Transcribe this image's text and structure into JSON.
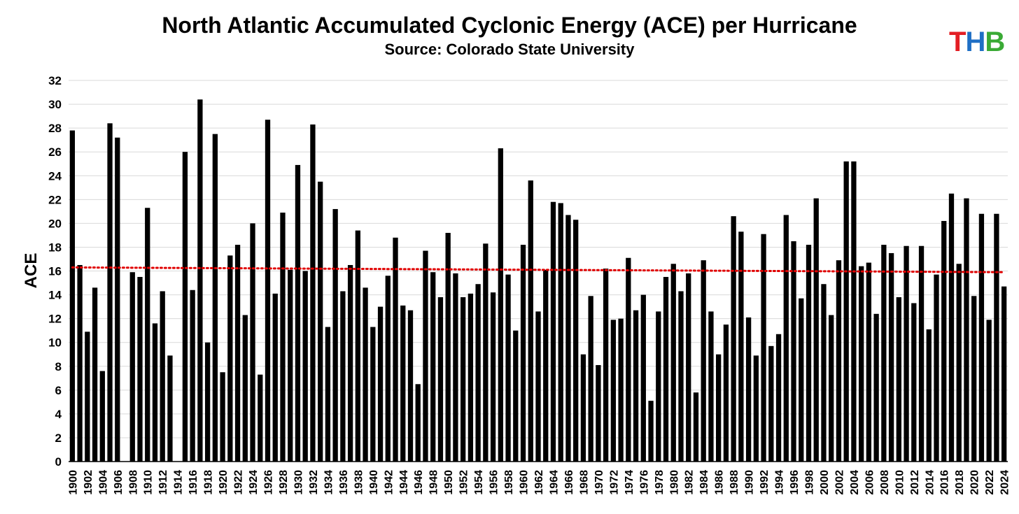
{
  "logo": {
    "letters": [
      "T",
      "H",
      "B"
    ],
    "colors": [
      "#e31e24",
      "#1f6fc5",
      "#3aaa35"
    ]
  },
  "colors": {
    "bars": "#000000",
    "trendline": "#e00000",
    "grid": "#d9d9d9"
  },
  "chart_data": {
    "type": "bar",
    "title": "North Atlantic Accumulated Cyclonic Energy (ACE) per Hurricane",
    "subtitle": "Source: Colorado State University",
    "xlabel": "",
    "ylabel": "ACE",
    "ylim": [
      0,
      32
    ],
    "yticks": [
      0,
      2,
      4,
      6,
      8,
      10,
      12,
      14,
      16,
      18,
      20,
      22,
      24,
      26,
      28,
      30,
      32
    ],
    "grid": true,
    "legend": "none",
    "categories": [
      1900,
      1901,
      1902,
      1903,
      1904,
      1905,
      1906,
      1907,
      1908,
      1909,
      1910,
      1911,
      1912,
      1913,
      1914,
      1915,
      1916,
      1917,
      1918,
      1919,
      1920,
      1921,
      1922,
      1923,
      1924,
      1925,
      1926,
      1927,
      1928,
      1929,
      1930,
      1931,
      1932,
      1933,
      1934,
      1935,
      1936,
      1937,
      1938,
      1939,
      1940,
      1941,
      1942,
      1943,
      1944,
      1945,
      1946,
      1947,
      1948,
      1949,
      1950,
      1951,
      1952,
      1953,
      1954,
      1955,
      1956,
      1957,
      1958,
      1959,
      1960,
      1961,
      1962,
      1963,
      1964,
      1965,
      1966,
      1967,
      1968,
      1969,
      1970,
      1971,
      1972,
      1973,
      1974,
      1975,
      1976,
      1977,
      1978,
      1979,
      1980,
      1981,
      1982,
      1983,
      1984,
      1985,
      1986,
      1987,
      1988,
      1989,
      1990,
      1991,
      1992,
      1993,
      1994,
      1995,
      1996,
      1997,
      1998,
      1999,
      2000,
      2001,
      2002,
      2003,
      2004,
      2005,
      2006,
      2007,
      2008,
      2009,
      2010,
      2011,
      2012,
      2013,
      2014,
      2015,
      2016,
      2017,
      2018,
      2019,
      2020,
      2021,
      2022,
      2023,
      2024
    ],
    "tick_labels": [
      "1900",
      "1902",
      "1904",
      "1906",
      "1908",
      "1910",
      "1912",
      "1914",
      "1916",
      "1918",
      "1920",
      "1922",
      "1924",
      "1926",
      "1928",
      "1930",
      "1932",
      "1934",
      "1936",
      "1938",
      "1940",
      "1942",
      "1944",
      "1946",
      "1948",
      "1950",
      "1952",
      "1954",
      "1956",
      "1958",
      "1960",
      "1962",
      "1964",
      "1966",
      "1968",
      "1970",
      "1972",
      "1974",
      "1976",
      "1978",
      "1980",
      "1982",
      "1984",
      "1986",
      "1988",
      "1990",
      "1992",
      "1994",
      "1996",
      "1998",
      "2000",
      "2002",
      "2004",
      "2006",
      "2008",
      "2010",
      "2012",
      "2014",
      "2016",
      "2018",
      "2020",
      "2022",
      "2024"
    ],
    "values": [
      27.8,
      16.5,
      10.9,
      14.6,
      7.6,
      28.4,
      27.2,
      0,
      15.9,
      15.5,
      21.3,
      11.6,
      14.3,
      8.9,
      0,
      26.0,
      14.4,
      30.4,
      10.0,
      27.5,
      7.5,
      17.3,
      18.2,
      12.3,
      20.0,
      7.3,
      28.7,
      14.1,
      20.9,
      16.1,
      24.9,
      16.0,
      28.3,
      23.5,
      11.3,
      21.2,
      14.3,
      16.5,
      19.4,
      14.6,
      11.3,
      13.0,
      15.6,
      18.8,
      13.1,
      12.7,
      6.5,
      17.7,
      15.9,
      13.8,
      19.2,
      15.8,
      13.8,
      14.1,
      14.9,
      18.3,
      14.2,
      26.3,
      15.7,
      11.0,
      18.2,
      23.6,
      12.6,
      16.1,
      21.8,
      21.7,
      20.7,
      20.3,
      9.0,
      13.9,
      8.1,
      16.2,
      11.9,
      12.0,
      17.1,
      12.7,
      14.0,
      5.1,
      12.6,
      15.5,
      16.6,
      14.3,
      15.8,
      5.8,
      16.9,
      12.6,
      9.0,
      11.5,
      20.6,
      19.3,
      12.1,
      8.9,
      19.1,
      9.7,
      10.7,
      20.7,
      18.5,
      13.7,
      18.2,
      22.1,
      14.9,
      12.3,
      16.9,
      25.2,
      25.2,
      16.4,
      16.7,
      12.4,
      18.2,
      17.5,
      13.8,
      18.1,
      13.3,
      18.1,
      11.1,
      15.7,
      20.2,
      22.5,
      16.6,
      22.1,
      13.9,
      20.8,
      11.9,
      20.8,
      14.7
    ],
    "trendline": {
      "type": "linear",
      "start": 16.3,
      "end": 15.9
    }
  }
}
